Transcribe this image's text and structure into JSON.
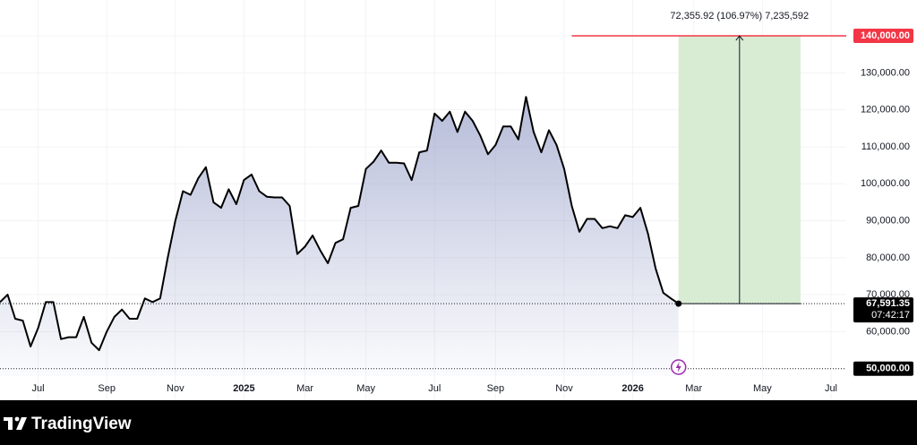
{
  "chart_data": {
    "type": "line",
    "categories": [
      null,
      null,
      null,
      null,
      null,
      "Jul",
      null,
      null,
      null,
      null,
      null,
      null,
      null,
      null,
      "Sep",
      null,
      null,
      null,
      null,
      null,
      null,
      null,
      null,
      "Nov",
      null,
      null,
      null,
      null,
      null,
      null,
      null,
      null,
      "2025",
      null,
      null,
      null,
      null,
      null,
      null,
      null,
      "Mar",
      null,
      null,
      null,
      null,
      null,
      null,
      null,
      "May",
      null,
      null,
      null,
      null,
      null,
      null,
      null,
      null,
      "Jul",
      null,
      null,
      null,
      null,
      null,
      null,
      null,
      "Sep",
      null,
      null,
      null,
      null,
      null,
      null,
      null,
      null,
      "Nov",
      null,
      null,
      null,
      null,
      null,
      null,
      null,
      null,
      "2026",
      null,
      null,
      null,
      null,
      null,
      null,
      null,
      "Mar",
      null,
      null,
      null,
      null,
      null,
      null,
      null,
      null,
      "May",
      null,
      null,
      null,
      null,
      null,
      null,
      null,
      null,
      "Jul",
      null,
      null
    ],
    "values": [
      68000,
      70000,
      63500,
      63000,
      56000,
      61000,
      68000,
      68000,
      58000,
      58500,
      58500,
      64000,
      57000,
      55000,
      60000,
      64000,
      66000,
      63500,
      63500,
      69000,
      68000,
      69000,
      80000,
      90000,
      98000,
      97000,
      101500,
      104500,
      95000,
      93500,
      98500,
      94500,
      101000,
      102500,
      98000,
      96500,
      96300,
      96300,
      94000,
      81000,
      83000,
      86000,
      82000,
      78500,
      84000,
      85000,
      93500,
      94000,
      104000,
      106000,
      109000,
      105700,
      105700,
      105500,
      101000,
      108500,
      109000,
      119000,
      117000,
      119500,
      114000,
      119500,
      117000,
      113000,
      108000,
      110500,
      115500,
      115500,
      112000,
      123500,
      114000,
      108500,
      114500,
      110500,
      104000,
      94000,
      87000,
      90500,
      90500,
      88000,
      88500,
      88000,
      91500,
      91000,
      93500,
      86500,
      77000,
      70500,
      69000,
      67591.35,
      null,
      null,
      null,
      null,
      null,
      null,
      null,
      null,
      null,
      null,
      null,
      null,
      null,
      null,
      null,
      null,
      null,
      null,
      null,
      null,
      null,
      null
    ],
    "color": "#000000",
    "fill": "#9ea6cc",
    "ylim": [
      48000,
      149700
    ],
    "yticks": [
      {
        "value": 50000,
        "label": "50,000.00"
      },
      {
        "value": 60000,
        "label": "60,000.00"
      },
      {
        "value": 70000,
        "label": "70,000.00"
      },
      {
        "value": 80000,
        "label": "80,000.00"
      },
      {
        "value": 90000,
        "label": "90,000.00"
      },
      {
        "value": 100000,
        "label": "100,000.00"
      },
      {
        "value": 110000,
        "label": "110,000.00"
      },
      {
        "value": 120000,
        "label": "120,000.00"
      },
      {
        "value": 130000,
        "label": "130,000.00"
      },
      {
        "value": 140000,
        "label": "140,000.00"
      }
    ],
    "grid": true,
    "last": {
      "label": "67,591.35",
      "countdown": "07:42:17"
    },
    "measure": {
      "target": 140000,
      "start": 89,
      "end": 105,
      "line_start": 75,
      "text": "72,355.92 (106.97%) 7,235,592",
      "color": "#f23645",
      "fill": "#d8ecd3"
    },
    "brand": "TradingView"
  }
}
